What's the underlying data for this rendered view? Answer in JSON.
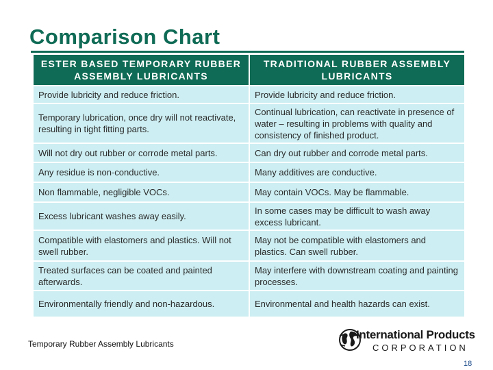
{
  "title": "Comparison Chart",
  "table": {
    "headers": [
      "ESTER BASED TEMPORARY RUBBER ASSEMBLY LUBRICANTS",
      "TRADITIONAL RUBBER ASSEMBLY LUBRICANTS"
    ],
    "rows": [
      [
        "Provide lubricity and reduce friction.",
        "Provide lubricity and reduce friction."
      ],
      [
        "Temporary lubrication, once dry will not reactivate, resulting in tight fitting parts.",
        "Continual lubrication, can reactivate in presence of water – resulting in problems with quality and consistency of finished product."
      ],
      [
        "Will not dry out rubber or corrode metal parts.",
        "Can dry out rubber and corrode metal parts."
      ],
      [
        "Any residue is non-conductive.",
        "Many additives are conductive."
      ],
      [
        "Non flammable, negligible VOCs.",
        "May contain VOCs.  May be flammable."
      ],
      [
        "Excess lubricant washes away easily.",
        "In some cases may be difficult to wash away excess lubricant."
      ],
      [
        "Compatible with elastomers and plastics. Will not swell rubber.",
        "May not be compatible with elastomers and plastics.  Can swell rubber."
      ],
      [
        "Treated surfaces can be coated and painted afterwards.",
        "May interfere with downstream coating and painting processes."
      ],
      [
        "Environmentally friendly and non-hazardous.",
        "Environmental and health hazards can exist."
      ]
    ]
  },
  "footer": {
    "left_text": "Temporary Rubber Assembly Lubricants",
    "logo_name": "International Products",
    "logo_sub": "CORPORATION",
    "logo_icon": "globe-icon",
    "page_number": "18"
  },
  "colors": {
    "header_bg": "#0f6b55",
    "cell_bg": "#cdeef2",
    "title": "#0f6b55"
  }
}
